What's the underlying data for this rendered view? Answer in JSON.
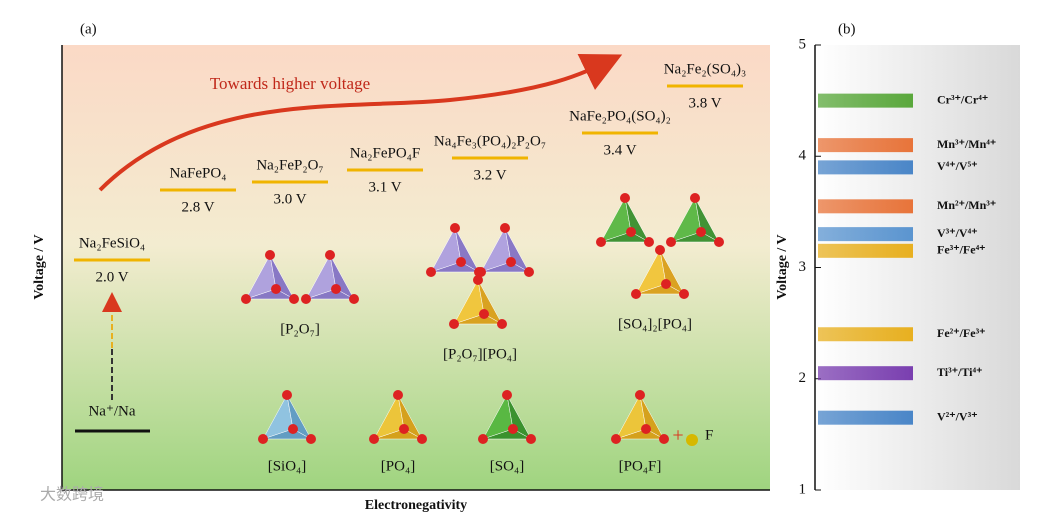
{
  "panel_a": {
    "label": "(a)",
    "y_axis_label": "Voltage / V",
    "x_axis_label": "Electronegativity",
    "arrow_text": "Towards higher voltage",
    "reference": "Na⁺/Na",
    "compounds": [
      {
        "name": "Na₂FeSiO₄",
        "voltage": "2.0 V"
      },
      {
        "name": "NaFePO₄",
        "voltage": "2.8 V"
      },
      {
        "name": "Na₂FeP₂O₇",
        "voltage": "3.0 V"
      },
      {
        "name": "Na₂FePO₄F",
        "voltage": "3.1 V"
      },
      {
        "name": "Na₄Fe₃(PO₄)₂P₂O₇",
        "voltage": "3.2 V"
      },
      {
        "name": "NaFe₂PO₄(SO₄)₂",
        "voltage": "3.4 V"
      },
      {
        "name": "Na₂Fe₂(SO₄)₃",
        "voltage": "3.8 V"
      }
    ],
    "structures": [
      "[P₂O₇]",
      "[P₂O₇][PO₄]",
      "[SO₄]₂[PO₄]",
      "[SiO₄]",
      "[PO₄]",
      "[SO₄]",
      "[PO₄F]"
    ],
    "fluorine": "F"
  },
  "chart_data": {
    "type": "band",
    "label": "(b)",
    "y_axis_label": "Voltage / V",
    "ylim": [
      1,
      5
    ],
    "yticks": [
      1,
      2,
      3,
      4,
      5
    ],
    "series": [
      {
        "name": "Cr³⁺/Cr⁴⁺",
        "color": "#5aa83c",
        "value": 4.5
      },
      {
        "name": "Mn³⁺/Mn⁴⁺",
        "color": "#e8743a",
        "value": 4.1
      },
      {
        "name": "V⁴⁺/V⁵⁺",
        "color": "#4a86c8",
        "value": 3.9
      },
      {
        "name": "Mn²⁺/Mn³⁺",
        "color": "#e8743a",
        "value": 3.55
      },
      {
        "name": "V³⁺/V⁴⁺",
        "color": "#5b95d0",
        "value": 3.3
      },
      {
        "name": "Fe³⁺/Fe⁴⁺",
        "color": "#e8b020",
        "value": 3.15
      },
      {
        "name": "Fe²⁺/Fe³⁺",
        "color": "#e8b020",
        "value": 2.4
      },
      {
        "name": "Ti³⁺/Ti⁴⁺",
        "color": "#7a3fb0",
        "value": 2.05
      },
      {
        "name": "V²⁺/V³⁺",
        "color": "#4a86c8",
        "value": 1.65
      }
    ]
  },
  "watermark": "大数跨境"
}
